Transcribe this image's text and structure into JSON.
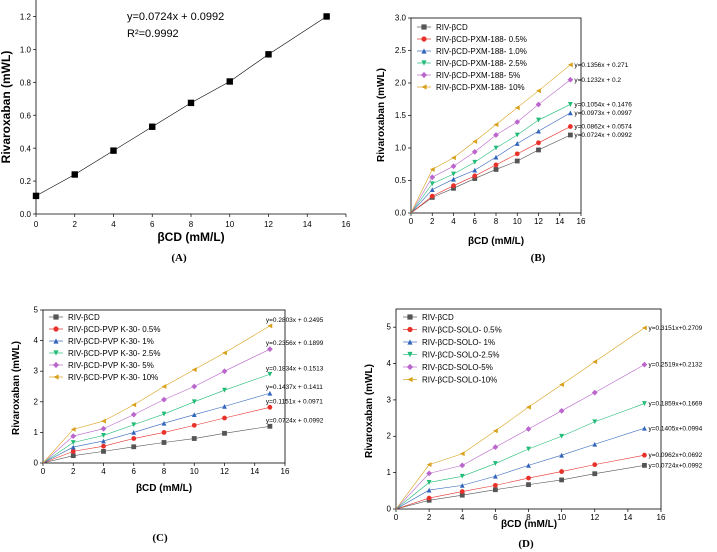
{
  "chart_data": [
    {
      "panel": "(A)",
      "type": "line",
      "xlabel": "βCD (mM/L)",
      "ylabel": "Rivaroxaban (mWL)",
      "xlim": [
        0,
        16
      ],
      "ylim": [
        0,
        1.3
      ],
      "xticks": [
        0,
        2,
        4,
        6,
        8,
        10,
        12,
        14,
        16
      ],
      "yticks": [
        0.0,
        0.2,
        0.4,
        0.6,
        0.8,
        1.0,
        1.2
      ],
      "ytick_labels": [
        "0.0",
        "0.2",
        "0.4",
        "0.6",
        "0.8",
        "1.0",
        "1.2"
      ],
      "series": [
        {
          "name": "RIV-βCD",
          "color": "#000000",
          "marker": "square",
          "x": [
            0,
            2,
            4,
            6,
            8,
            10,
            12,
            15
          ],
          "y": [
            0.11,
            0.24,
            0.385,
            0.53,
            0.675,
            0.805,
            0.97,
            1.2
          ],
          "equation": "y=0.0724x + 0.0992",
          "r2": "R²=0.9992"
        }
      ]
    },
    {
      "panel": "(B)",
      "type": "line",
      "xlabel": "βCD (mM/L)",
      "ylabel": "Rivaroxaban (mWL)",
      "xlim": [
        0,
        16
      ],
      "ylim": [
        0,
        3.0
      ],
      "xticks": [
        0,
        2,
        4,
        6,
        8,
        10,
        12,
        14,
        16
      ],
      "yticks": [
        0.0,
        0.5,
        1.0,
        1.5,
        2.0,
        2.5,
        3.0
      ],
      "ytick_labels": [
        "0.0",
        "0.5",
        "1.0",
        "1.5",
        "2.0",
        "2.5",
        "3.0"
      ],
      "legend": "top-left",
      "series": [
        {
          "name": "RIV-βCD",
          "color": "#555555",
          "marker": "square",
          "x": [
            0,
            2,
            4,
            6,
            8,
            10,
            12,
            15
          ],
          "y": [
            0,
            0.24,
            0.38,
            0.53,
            0.67,
            0.8,
            0.97,
            1.2
          ],
          "equation": "y=0.0724x + 0.0992"
        },
        {
          "name": "RIV-βCD-PXM-188- 0.5%",
          "color": "#e8312a",
          "marker": "circle",
          "x": [
            0,
            2,
            4,
            6,
            8,
            10,
            12,
            15
          ],
          "y": [
            0,
            0.26,
            0.42,
            0.57,
            0.74,
            0.91,
            1.08,
            1.33
          ],
          "equation": "y=0.0862x + 0.0574"
        },
        {
          "name": "RIV-βCD-PXM-188- 1.0%",
          "color": "#3366bb",
          "marker": "triangle-up",
          "x": [
            0,
            2,
            4,
            6,
            8,
            10,
            12,
            15
          ],
          "y": [
            0,
            0.36,
            0.52,
            0.66,
            0.86,
            1.07,
            1.26,
            1.54
          ],
          "equation": "y=0.0973x + 0.0997"
        },
        {
          "name": "RIV-βCD-PXM-188- 2.5%",
          "color": "#22bb77",
          "marker": "triangle-down",
          "x": [
            0,
            2,
            4,
            6,
            8,
            10,
            12,
            15
          ],
          "y": [
            0,
            0.45,
            0.6,
            0.78,
            1.0,
            1.2,
            1.43,
            1.67
          ],
          "equation": "y=0.1054x + 0.1476"
        },
        {
          "name": "RIV-βCD-PXM-188- 5%",
          "color": "#bb66cc",
          "marker": "diamond",
          "x": [
            0,
            2,
            4,
            6,
            8,
            10,
            12,
            15
          ],
          "y": [
            0,
            0.55,
            0.72,
            0.94,
            1.2,
            1.4,
            1.67,
            2.05
          ],
          "equation": "y=0.1232x + 0.2"
        },
        {
          "name": "RIV-βCD-PXM-188- 10%",
          "color": "#d9a11a",
          "marker": "triangle-left",
          "x": [
            0,
            2,
            4,
            6,
            8,
            10,
            12,
            15
          ],
          "y": [
            0,
            0.67,
            0.85,
            1.1,
            1.36,
            1.62,
            1.88,
            2.28
          ],
          "equation": "y=0.1356x + 0.271"
        }
      ]
    },
    {
      "panel": "(C)",
      "type": "line",
      "xlabel": "βCD (mM/L)",
      "ylabel": "Rivaroxaban (mWL)",
      "xlim": [
        0,
        16
      ],
      "ylim": [
        0,
        5
      ],
      "xticks": [
        0,
        2,
        4,
        6,
        8,
        10,
        12,
        14,
        16
      ],
      "yticks": [
        0,
        1,
        2,
        3,
        4,
        5
      ],
      "ytick_labels": [
        "0",
        "1",
        "2",
        "3",
        "4",
        "5"
      ],
      "legend": "top-left",
      "series": [
        {
          "name": "RIV-βCD",
          "color": "#555555",
          "marker": "square",
          "x": [
            0,
            2,
            4,
            6,
            8,
            10,
            12,
            15
          ],
          "y": [
            0,
            0.24,
            0.38,
            0.53,
            0.67,
            0.8,
            0.97,
            1.2
          ],
          "equation": "y=0.0724x + 0.0992"
        },
        {
          "name": "RIV-βCD-PVP K-30- 0.5%",
          "color": "#e8312a",
          "marker": "circle",
          "x": [
            0,
            2,
            4,
            6,
            8,
            10,
            12,
            15
          ],
          "y": [
            0,
            0.38,
            0.55,
            0.8,
            1.0,
            1.23,
            1.47,
            1.82
          ],
          "equation": "y=0.1151x + 0.0971"
        },
        {
          "name": "RIV-βCD-PVP K-30- 1%",
          "color": "#3366bb",
          "marker": "triangle-up",
          "x": [
            0,
            2,
            4,
            6,
            8,
            10,
            12,
            15
          ],
          "y": [
            0,
            0.52,
            0.72,
            1.0,
            1.3,
            1.58,
            1.85,
            2.28
          ],
          "equation": "y=0.1437x + 0.1411"
        },
        {
          "name": "RIV-βCD-PVP K-30- 2.5%",
          "color": "#22bb77",
          "marker": "triangle-down",
          "x": [
            0,
            2,
            4,
            6,
            8,
            10,
            12,
            15
          ],
          "y": [
            0,
            0.67,
            0.9,
            1.25,
            1.6,
            2.0,
            2.38,
            2.9
          ],
          "equation": "y=0.1834x + 0.1513"
        },
        {
          "name": "RIV-βCD-PVP K-30- 5%",
          "color": "#bb66cc",
          "marker": "diamond",
          "x": [
            0,
            2,
            4,
            6,
            8,
            10,
            12,
            15
          ],
          "y": [
            0,
            0.88,
            1.12,
            1.58,
            2.07,
            2.5,
            3.0,
            3.72
          ],
          "equation": "y=0.2356x + 0.1899"
        },
        {
          "name": "RIV-βCD-PVP K-30- 10%",
          "color": "#d9a11a",
          "marker": "triangle-left",
          "x": [
            0,
            2,
            4,
            6,
            8,
            10,
            12,
            15
          ],
          "y": [
            0,
            1.1,
            1.37,
            1.9,
            2.5,
            3.05,
            3.6,
            4.48
          ],
          "equation": "y=0.2803x + 0.2495"
        }
      ]
    },
    {
      "panel": "(D)",
      "type": "line",
      "xlabel": "βCD (mM/L)",
      "ylabel": "Rivaroxaban (mWL)",
      "xlim": [
        0,
        16
      ],
      "ylim": [
        0,
        5.5
      ],
      "xticks": [
        0,
        2,
        4,
        6,
        8,
        10,
        12,
        14,
        16
      ],
      "yticks": [
        0,
        1,
        2,
        3,
        4,
        5
      ],
      "ytick_labels": [
        "0",
        "1",
        "2",
        "3",
        "4",
        "5"
      ],
      "legend": "top-left",
      "series": [
        {
          "name": "RIV-βCD",
          "color": "#555555",
          "marker": "square",
          "x": [
            0,
            2,
            4,
            6,
            8,
            10,
            12,
            15
          ],
          "y": [
            0,
            0.24,
            0.38,
            0.53,
            0.67,
            0.8,
            0.97,
            1.2
          ],
          "equation": "y=0.0724x+0.0992"
        },
        {
          "name": "RIV-βCD-SOLO- 0.5%",
          "color": "#e8312a",
          "marker": "circle",
          "x": [
            0,
            2,
            4,
            6,
            8,
            10,
            12,
            15
          ],
          "y": [
            0,
            0.3,
            0.48,
            0.65,
            0.85,
            1.03,
            1.22,
            1.48
          ],
          "equation": "y=0.0962x+0.0692"
        },
        {
          "name": "RIV-βCD-SOLO- 1%",
          "color": "#3366bb",
          "marker": "triangle-up",
          "x": [
            0,
            2,
            4,
            6,
            8,
            10,
            12,
            15
          ],
          "y": [
            0,
            0.52,
            0.65,
            0.9,
            1.2,
            1.48,
            1.78,
            2.22
          ],
          "equation": "y=0.1405x+0.0994"
        },
        {
          "name": "RIV-βCD-SOLO-2.5%",
          "color": "#22bb77",
          "marker": "triangle-down",
          "x": [
            0,
            2,
            4,
            6,
            8,
            10,
            12,
            15
          ],
          "y": [
            0,
            0.73,
            0.9,
            1.25,
            1.65,
            2.0,
            2.4,
            2.9
          ],
          "equation": "y=0.1859x+0.1669"
        },
        {
          "name": "RIV-βCD-SOLO-5%",
          "color": "#bb66cc",
          "marker": "diamond",
          "x": [
            0,
            2,
            4,
            6,
            8,
            10,
            12,
            15
          ],
          "y": [
            0,
            0.98,
            1.2,
            1.7,
            2.2,
            2.7,
            3.2,
            3.97
          ],
          "equation": "y=0.2519x+0.2132"
        },
        {
          "name": "RIV-βCD-SOLO-10%",
          "color": "#d9a11a",
          "marker": "triangle-left",
          "x": [
            0,
            2,
            4,
            6,
            8,
            10,
            12,
            15
          ],
          "y": [
            0,
            1.22,
            1.52,
            2.15,
            2.8,
            3.42,
            4.05,
            4.98
          ],
          "equation": "y=0.3151x+0.2709"
        }
      ]
    }
  ]
}
